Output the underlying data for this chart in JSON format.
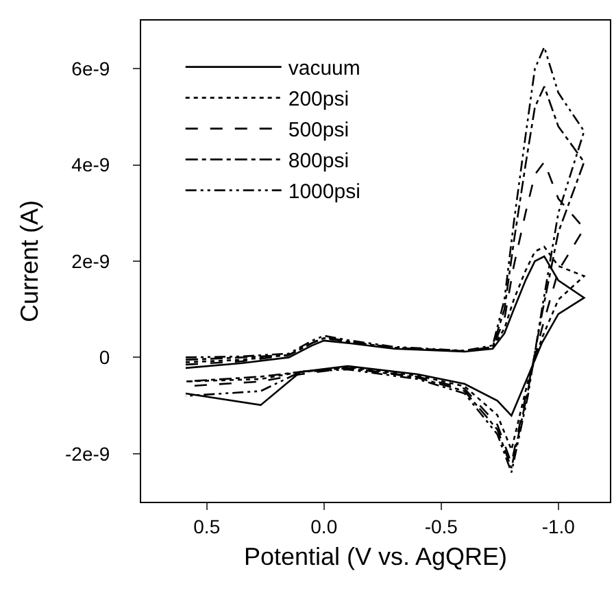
{
  "chart_data": {
    "type": "line",
    "xlabel": "Potential (V vs. AgQRE)",
    "ylabel": "Current (A)",
    "x": [
      0.59,
      0.35,
      0.15,
      0.05,
      0.0,
      -0.1,
      -0.3,
      -0.6,
      -0.72,
      -0.77,
      -0.81,
      -0.86,
      -0.9,
      -0.94,
      -1.0,
      -1.11,
      -1.0,
      -0.93,
      -0.87,
      -0.8,
      -0.74,
      -0.6,
      -0.4,
      -0.1,
      0.1,
      0.27,
      0.59
    ],
    "series": [
      {
        "name": "vacuum",
        "color": "#000000",
        "line_style": "solid",
        "values": [
          -2.2e-10,
          -1.2e-10,
          0.0,
          2.5e-10,
          3.5e-10,
          3e-10,
          1.8e-10,
          1.2e-10,
          1.8e-10,
          5e-10,
          1e-09,
          1.6e-09,
          2e-09,
          2.1e-09,
          1.6e-09,
          1.24e-09,
          9e-10,
          3e-10,
          -4e-10,
          -1.21e-09,
          -9e-10,
          -5.5e-10,
          -3.5e-10,
          -1.8e-10,
          -3e-10,
          -9.9e-10,
          -7.5e-10
        ]
      },
      {
        "name": "200psi",
        "color": "#000000",
        "line_style": "dotted",
        "values": [
          -1e-10,
          -5e-11,
          5e-11,
          3e-10,
          4e-10,
          3.2e-10,
          2e-10,
          1.3e-10,
          2e-10,
          6e-10,
          1.2e-09,
          1.8e-09,
          2.2e-09,
          2.3e-09,
          1.9e-09,
          1.69e-09,
          1.2e-09,
          4e-10,
          -5e-10,
          -1.92e-09,
          -1.2e-09,
          -6e-10,
          -3.8e-10,
          -2e-10,
          -3e-10,
          -4.5e-10,
          -5e-10
        ]
      },
      {
        "name": "500psi",
        "color": "#000000",
        "line_style": "dashed",
        "values": [
          -1.5e-10,
          -8e-11,
          5e-11,
          3e-10,
          4.2e-10,
          3.4e-10,
          2e-10,
          1.3e-10,
          2e-10,
          8e-10,
          1.9e-09,
          3e-09,
          3.8e-09,
          4.06e-09,
          3.3e-09,
          2.68e-09,
          1.8e-09,
          6e-10,
          -6e-10,
          -2.2e-09,
          -1.4e-09,
          -6.5e-10,
          -4e-10,
          -2.2e-10,
          -3.5e-10,
          -5e-10,
          -6e-10
        ]
      },
      {
        "name": "800psi",
        "color": "#000000",
        "line_style": "dashdot",
        "values": [
          -5e-11,
          0.0,
          5e-11,
          3e-10,
          4e-10,
          3.3e-10,
          2e-10,
          1.3e-10,
          2.2e-10,
          1e-09,
          2.4e-09,
          4e-09,
          5.2e-09,
          5.63e-09,
          4.8e-09,
          4.06e-09,
          2.6e-09,
          9e-10,
          -7e-10,
          -2.3e-09,
          -1.5e-09,
          -7e-10,
          -4.2e-10,
          -2.2e-10,
          -3e-10,
          -4e-10,
          -5e-10
        ]
      },
      {
        "name": "1000psi",
        "color": "#000000",
        "line_style": "dashdotdot",
        "values": [
          0.0,
          2e-11,
          8e-11,
          3.5e-10,
          4.5e-10,
          3.6e-10,
          2.2e-10,
          1.4e-10,
          2.5e-10,
          1.2e-09,
          2.8e-09,
          4.6e-09,
          6e-09,
          6.45e-09,
          5.5e-09,
          4.7e-09,
          3e-09,
          1e-09,
          -8e-10,
          -2.39e-09,
          -1.6e-09,
          -7.5e-10,
          -4.5e-10,
          -2.5e-10,
          -3e-10,
          -7e-10,
          -8e-10
        ]
      }
    ],
    "xlim": [
      0.78,
      -1.22
    ],
    "xticks": [
      {
        "value": 0.5,
        "label": "0.5"
      },
      {
        "value": 0.0,
        "label": "0.0"
      },
      {
        "value": -0.5,
        "label": "-0.5"
      },
      {
        "value": -1.0,
        "label": "-1.0"
      }
    ],
    "ylim": [
      -3e-09,
      7e-09
    ],
    "yticks": [
      {
        "value": -2e-09,
        "label": "-2e-9"
      },
      {
        "value": 0,
        "label": "0"
      },
      {
        "value": 2e-09,
        "label": "2e-9"
      },
      {
        "value": 4e-09,
        "label": "4e-9"
      },
      {
        "value": 6e-09,
        "label": "6e-9"
      }
    ],
    "grid": false,
    "legend": "top left",
    "marker": "none"
  }
}
